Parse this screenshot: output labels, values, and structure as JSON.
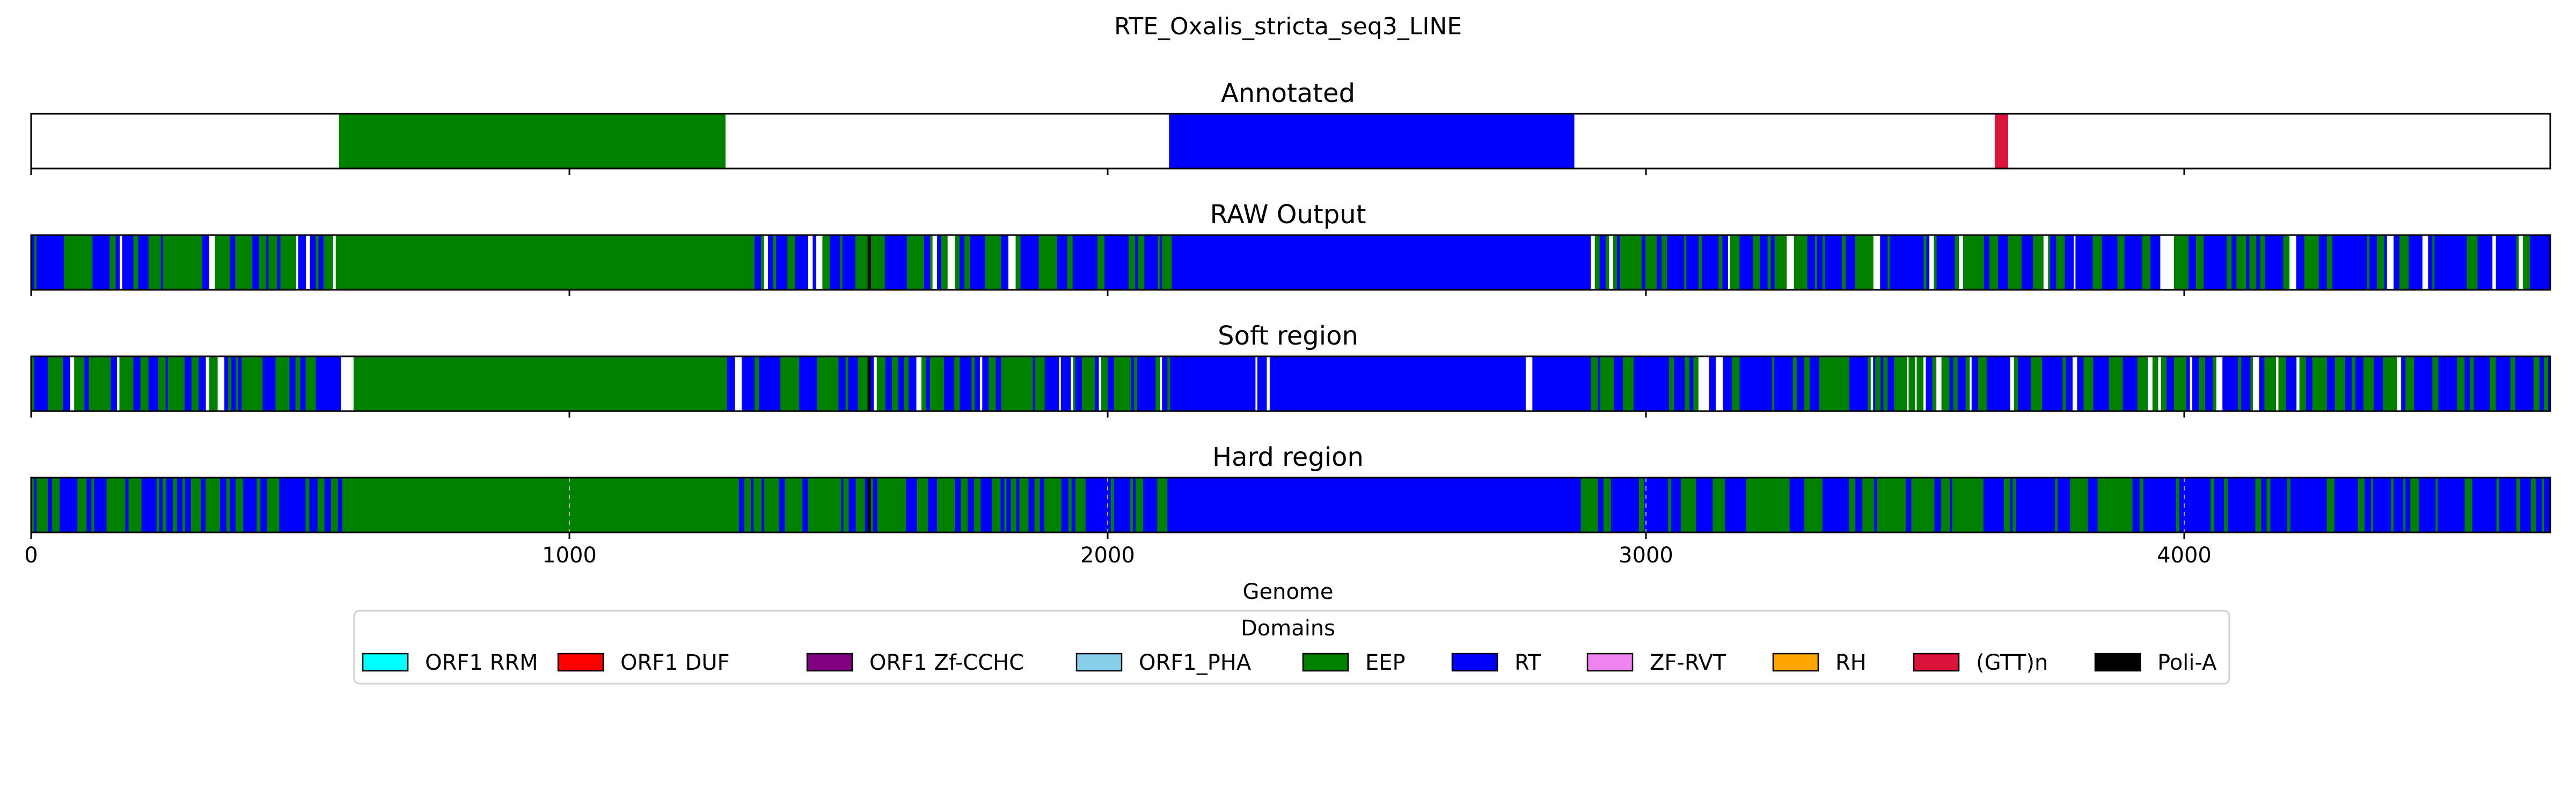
{
  "chart_data": {
    "type": "genome-track",
    "title": "RTE_Oxalis_stricta_seq3_LINE",
    "xlabel": "Genome",
    "xlim": [
      0,
      4680
    ],
    "x_ticks": [
      0,
      1000,
      2000,
      3000,
      4000
    ],
    "colors": {
      "EEP": "#008000",
      "RT": "#0000ff",
      "(GTT)n": "#dc143c",
      "Poli-A": "#000000"
    },
    "tracks": [
      {
        "title": "Annotated",
        "style": "annotation",
        "segments": [
          {
            "start": 572,
            "end": 1290,
            "domain": "EEP"
          },
          {
            "start": 2114,
            "end": 2867,
            "domain": "RT"
          },
          {
            "start": 3648,
            "end": 3673,
            "domain": "(GTT)n"
          }
        ]
      },
      {
        "title": "RAW Output",
        "style": "noisy",
        "seed": 11,
        "gap_rate": 0.08,
        "sticks": [
          {
            "start": 1554,
            "end": 1560,
            "domain": "Poli-A"
          }
        ],
        "regions": [
          {
            "start": 0,
            "end": 80,
            "p_rt": 0.55
          },
          {
            "start": 80,
            "end": 572,
            "p_rt": 0.45
          },
          {
            "start": 572,
            "end": 1290,
            "p_rt": 0.0
          },
          {
            "start": 1290,
            "end": 1550,
            "p_rt": 0.45
          },
          {
            "start": 1550,
            "end": 2114,
            "p_rt": 0.55
          },
          {
            "start": 2114,
            "end": 2867,
            "p_rt": 1.0
          },
          {
            "start": 2867,
            "end": 3650,
            "p_rt": 0.55
          },
          {
            "start": 3650,
            "end": 4680,
            "p_rt": 0.62
          }
        ]
      },
      {
        "title": "Soft region",
        "style": "noisy",
        "seed": 29,
        "gap_rate": 0.08,
        "sticks": [
          {
            "start": 1554,
            "end": 1560,
            "domain": "Poli-A"
          }
        ],
        "regions": [
          {
            "start": 0,
            "end": 80,
            "p_rt": 0.55
          },
          {
            "start": 80,
            "end": 572,
            "p_rt": 0.45
          },
          {
            "start": 572,
            "end": 1290,
            "p_rt": 0.0
          },
          {
            "start": 1290,
            "end": 1550,
            "p_rt": 0.45
          },
          {
            "start": 1550,
            "end": 2114,
            "p_rt": 0.55
          },
          {
            "start": 2114,
            "end": 2867,
            "p_rt": 1.0
          },
          {
            "start": 2867,
            "end": 3650,
            "p_rt": 0.55
          },
          {
            "start": 3650,
            "end": 4680,
            "p_rt": 0.62
          }
        ]
      },
      {
        "title": "Hard region",
        "style": "noisy",
        "seed": 47,
        "gap_rate": 0.0,
        "sticks": [
          {
            "start": 1554,
            "end": 1560,
            "domain": "Poli-A"
          }
        ],
        "regions": [
          {
            "start": 0,
            "end": 572,
            "p_rt": 0.5
          },
          {
            "start": 572,
            "end": 1290,
            "p_rt": 0.0
          },
          {
            "start": 1290,
            "end": 2114,
            "p_rt": 0.45
          },
          {
            "start": 2114,
            "end": 2867,
            "p_rt": 1.0
          },
          {
            "start": 2867,
            "end": 3650,
            "p_rt": 0.4
          },
          {
            "start": 3650,
            "end": 4680,
            "p_rt": 0.7
          }
        ]
      }
    ],
    "legend": {
      "title": "Domains",
      "placement": "bottom-center",
      "entries": [
        {
          "label": "ORF1 RRM",
          "color": "#00ffff"
        },
        {
          "label": "ORF1 DUF",
          "color": "#ff0000"
        },
        {
          "label": "ORF1 Zf-CCHC",
          "color": "#800080"
        },
        {
          "label": "ORF1_PHA",
          "color": "#87ceeb"
        },
        {
          "label": "EEP",
          "color": "#008000"
        },
        {
          "label": "RT",
          "color": "#0000ff"
        },
        {
          "label": "ZF-RVT",
          "color": "#ee82ee"
        },
        {
          "label": "RH",
          "color": "#ffa500"
        },
        {
          "label": "(GTT)n",
          "color": "#dc143c"
        },
        {
          "label": "Poli-A",
          "color": "#000000"
        }
      ]
    }
  }
}
